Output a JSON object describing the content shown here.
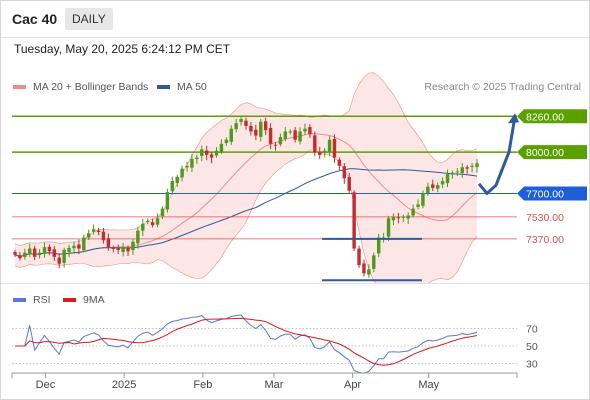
{
  "header": {
    "title": "Cac 40",
    "period": "DAILY"
  },
  "timestamp": "Tuesday, May 20, 2025 6:24:12 PM CET",
  "legend": {
    "bollinger": "MA 20 + Bollinger Bands",
    "ma50": "MA 50",
    "credit": "Research © 2025 Trading Central",
    "rsi": "RSI",
    "rsi_ma": "9MA"
  },
  "colors": {
    "bollinger": "#f08c8c",
    "ma50": "#2f5a9b",
    "resistance": "#5aa000",
    "pivot": "#1f5fd6",
    "support": "#e05050",
    "up_candle": "#4e9a1c",
    "down_candle": "#c42d2d",
    "rsi": "#5b78d6",
    "rsi_ma": "#d61c1c"
  },
  "chart_data": [
    {
      "type": "candlestick",
      "title": "Cac 40",
      "y_unit": "index points",
      "ylim": [
        7050,
        8400
      ],
      "x_range": [
        "2024-11-19",
        "2025-05-20"
      ],
      "levels": [
        {
          "label": "8260.00",
          "value": 8260,
          "kind": "resistance"
        },
        {
          "label": "8000.00",
          "value": 8000,
          "kind": "resistance"
        },
        {
          "label": "7700.00",
          "value": 7700,
          "kind": "pivot"
        },
        {
          "label": "7530.00",
          "value": 7530,
          "kind": "support"
        },
        {
          "label": "7370.00",
          "value": 7370,
          "kind": "support"
        }
      ],
      "forecast_path": [
        7770,
        7700,
        7760,
        8000,
        8260
      ],
      "close_series": [
        7255,
        7230,
        7270,
        7300,
        7240,
        7270,
        7310,
        7280,
        7240,
        7190,
        7290,
        7305,
        7320,
        7300,
        7380,
        7410,
        7440,
        7420,
        7360,
        7310,
        7300,
        7290,
        7310,
        7280,
        7350,
        7430,
        7480,
        7500,
        7470,
        7520,
        7590,
        7710,
        7790,
        7820,
        7880,
        7900,
        7950,
        7960,
        8020,
        7980,
        7960,
        8010,
        8060,
        8090,
        8170,
        8210,
        8240,
        8190,
        8150,
        8120,
        8220,
        8160,
        8060,
        8050,
        8110,
        8150,
        8150,
        8090,
        8150,
        8170,
        8130,
        8000,
        7980,
        8010,
        8090,
        7960,
        7900,
        7810,
        7720,
        7300,
        7180,
        7120,
        7150,
        7250,
        7380,
        7380,
        7520,
        7530,
        7520,
        7530,
        7540,
        7590,
        7620,
        7700,
        7750,
        7740,
        7760,
        7790,
        7840,
        7850,
        7860,
        7890,
        7880,
        7900,
        7920
      ]
    },
    {
      "type": "line",
      "title": "RSI",
      "ylim": [
        10,
        90
      ],
      "y_ticks": [
        70,
        50,
        30
      ],
      "x_ticks": [
        "Dec",
        "2025",
        "Feb",
        "Mar",
        "Apr",
        "May"
      ],
      "series": [
        {
          "name": "RSI"
        },
        {
          "name": "9MA"
        }
      ]
    }
  ]
}
